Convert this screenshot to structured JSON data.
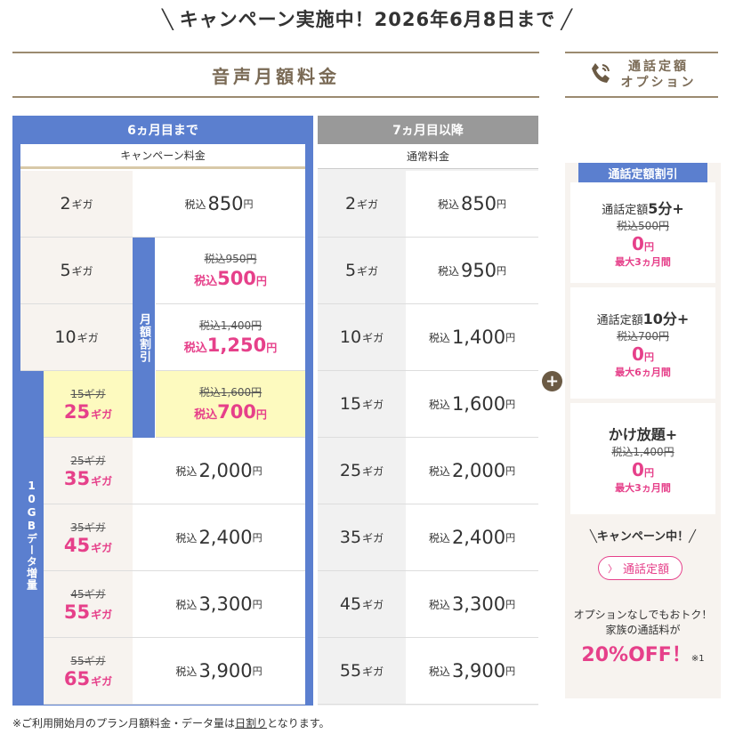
{
  "banner": "キャンペーン実施中！2026年6月8日まで",
  "section_title": "音声月額料金",
  "option_title": [
    "通話定額",
    "オプション"
  ],
  "left": {
    "header": "6ヵ月目まで",
    "sub": "キャンペーン料金",
    "monthly_tag": "月額割引",
    "data_tag": "10GBデータ増量"
  },
  "right": {
    "header": "7ヵ月目以降",
    "sub": "通常料金"
  },
  "tax": "税込",
  "yen": "円",
  "giga": "ギガ",
  "campaign_rows": [
    {
      "old": "",
      "gb": "2",
      "price": "850",
      "old_price": "",
      "big": false
    },
    {
      "old": "",
      "gb": "5",
      "price": "500",
      "old_price": "950",
      "big": false
    },
    {
      "old": "",
      "gb": "10",
      "price": "1,250",
      "old_price": "1,400",
      "big": false
    },
    {
      "old": "15",
      "gb": "25",
      "price": "700",
      "old_price": "1,600",
      "big": false
    },
    {
      "old": "25",
      "gb": "35",
      "price": "2,000",
      "old_price": "",
      "big": true
    },
    {
      "old": "35",
      "gb": "45",
      "price": "2,400",
      "old_price": "",
      "big": true
    },
    {
      "old": "45",
      "gb": "55",
      "price": "3,300",
      "old_price": "",
      "big": true
    },
    {
      "old": "55",
      "gb": "65",
      "price": "3,900",
      "old_price": "",
      "big": true
    }
  ],
  "normal_rows": [
    {
      "gb": "2",
      "price": "850"
    },
    {
      "gb": "5",
      "price": "950"
    },
    {
      "gb": "10",
      "price": "1,400"
    },
    {
      "gb": "15",
      "price": "1,600"
    },
    {
      "gb": "25",
      "price": "2,000"
    },
    {
      "gb": "35",
      "price": "2,400"
    },
    {
      "gb": "45",
      "price": "3,300"
    },
    {
      "gb": "55",
      "price": "3,900"
    }
  ],
  "options": {
    "discount_label": "通話定額割引",
    "cards": [
      {
        "pre": "通話定額",
        "bold": "5分+",
        "old": "500",
        "zero": "0",
        "period": "最大3ヵ月間"
      },
      {
        "pre": "通話定額",
        "bold": "10分+",
        "old": "700",
        "zero": "0",
        "period": "最大6ヵ月間"
      },
      {
        "pre": "",
        "bold": "かけ放題+",
        "old": "1,400",
        "zero": "0",
        "period": "最大3ヵ月間"
      }
    ],
    "campaign": "キャンペーン中！",
    "pill": "通話定額",
    "note1": "オプションなしでもおトク！",
    "note2": "家族の通話料が",
    "off": "20%OFF！",
    "ref": "※1"
  },
  "footer": {
    "pre": "※ご利用開始月のプラン月額料金・データ量は",
    "link": "日割り",
    "post": "となります。"
  },
  "colors": {
    "blue": "#5b7fcf",
    "pink": "#e6408a",
    "beige": "#f7f3ef",
    "brown": "#7a6a55",
    "yellow": "#fdfabf"
  }
}
